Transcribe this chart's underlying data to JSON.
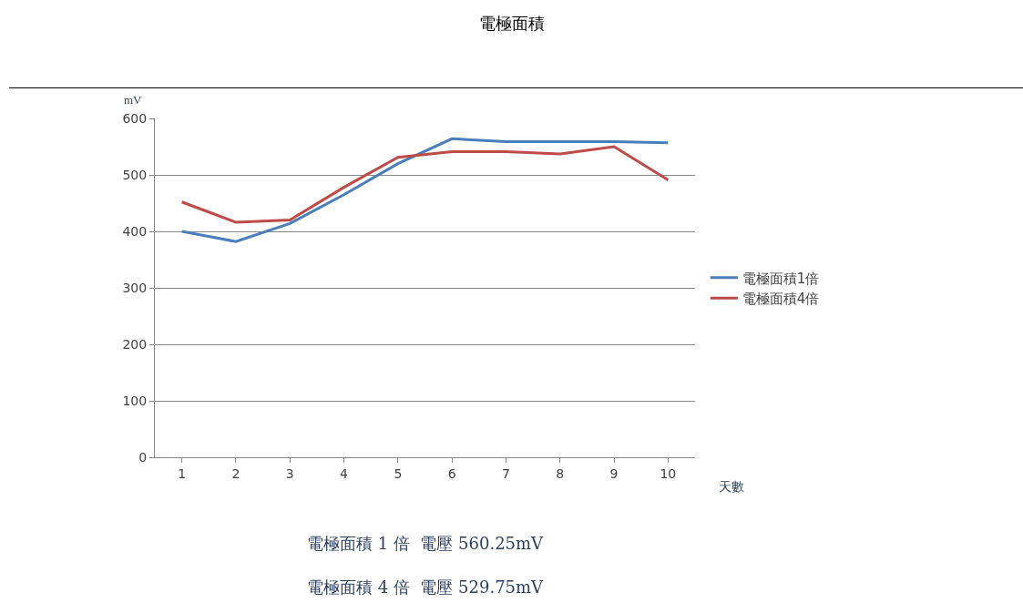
{
  "chart_data": {
    "type": "line",
    "title": "電極面積",
    "ylabel": "mV",
    "xlabel": "天數",
    "categories": [
      "1",
      "2",
      "3",
      "4",
      "5",
      "6",
      "7",
      "8",
      "9",
      "10"
    ],
    "series": [
      {
        "name": "電極面積1倍",
        "color": "#4a7ebb",
        "values": [
          400,
          382,
          414,
          465,
          520,
          564,
          559,
          559,
          559,
          557
        ]
      },
      {
        "name": "電極面積4倍",
        "color": "#be4b48",
        "values": [
          452,
          416,
          420,
          478,
          531,
          541,
          541,
          537,
          550,
          491
        ]
      }
    ],
    "ylim": [
      0,
      600
    ],
    "yticks": [
      0,
      100,
      200,
      300,
      400,
      500,
      600
    ],
    "grid": "y",
    "legend": "right",
    "marker": "none",
    "line_style": "solid",
    "annotations": [
      "電極面積 1 倍  電壓 560.25mV",
      "電極面積 4 倍  電壓 529.75mV"
    ]
  }
}
